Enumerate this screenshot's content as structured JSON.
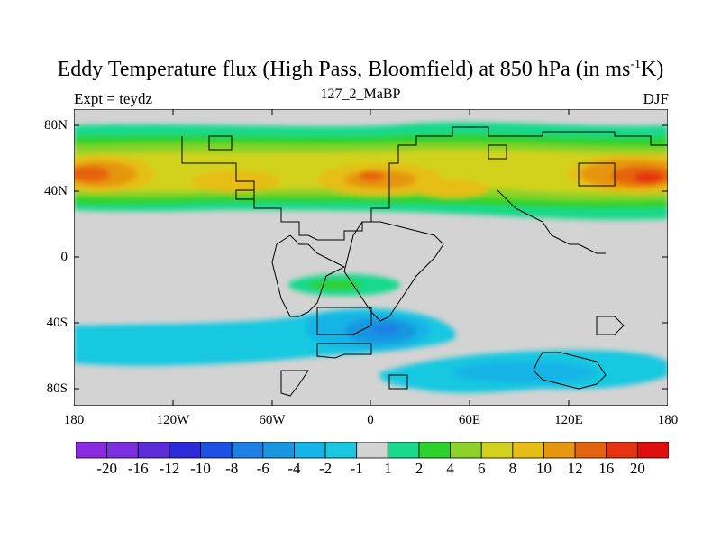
{
  "title": {
    "main_before": "Eddy Temperature flux (High Pass, Bloomfield) at 850 hPa (in ms",
    "sup": "-1",
    "main_after": "K)",
    "left": "Expt = teydz",
    "center": "127_2_MaBP",
    "right": "DJF"
  },
  "map": {
    "lat_labels": [
      "80N",
      "40N",
      "0",
      "40S",
      "80S"
    ],
    "lon_labels": [
      "180",
      "120W",
      "60W",
      "0",
      "60E",
      "120E",
      "180"
    ],
    "land_color": "#d3d3d3",
    "outline_color": "#000000"
  },
  "colorbar": {
    "colors": [
      "#8a2be2",
      "#7b2fe0",
      "#5b2cd9",
      "#2d2adb",
      "#1e50e6",
      "#1e7fe6",
      "#1996e0",
      "#14b4e6",
      "#19c8e0",
      "#d3d3d3",
      "#19d98c",
      "#2dd22d",
      "#8cd228",
      "#d2d21e",
      "#e6be14",
      "#e6960f",
      "#e6640f",
      "#e6320f",
      "#e00f0f"
    ],
    "labels": [
      "-20",
      "-16",
      "-12",
      "-10",
      "-8",
      "-6",
      "-4",
      "-2",
      "-1",
      "1",
      "2",
      "4",
      "6",
      "8",
      "10",
      "12",
      "16",
      "20"
    ]
  }
}
